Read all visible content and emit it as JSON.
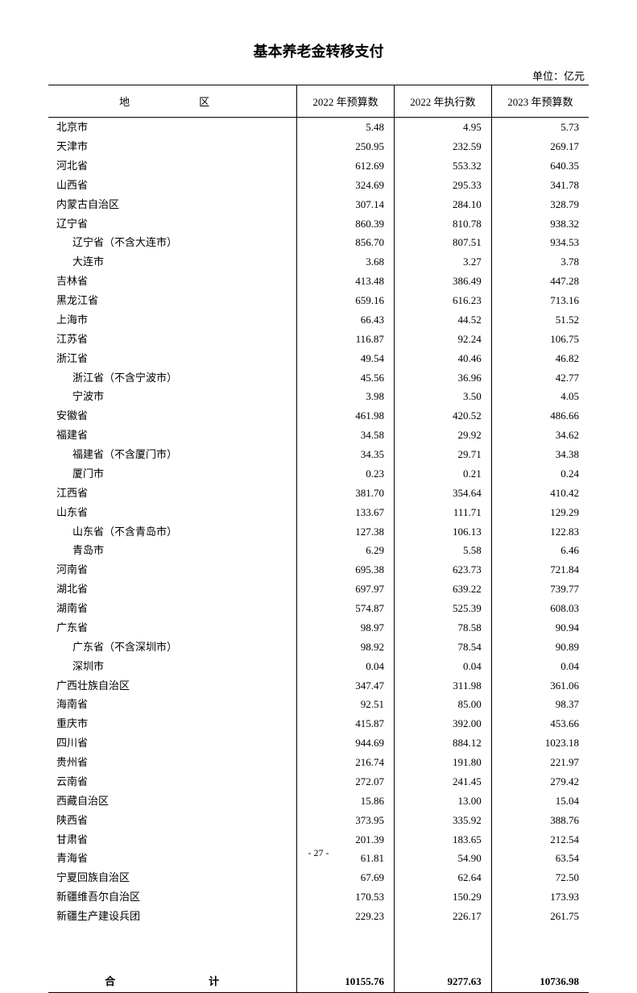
{
  "title": "基本养老金转移支付",
  "unit": "单位：亿元",
  "headers": {
    "region": "地　　区",
    "col1": "2022 年预算数",
    "col2": "2022 年执行数",
    "col3": "2023 年预算数"
  },
  "rows": [
    {
      "region": "北京市",
      "v1": "5.48",
      "v2": "4.95",
      "v3": "5.73",
      "indent": false
    },
    {
      "region": "天津市",
      "v1": "250.95",
      "v2": "232.59",
      "v3": "269.17",
      "indent": false
    },
    {
      "region": "河北省",
      "v1": "612.69",
      "v2": "553.32",
      "v3": "640.35",
      "indent": false
    },
    {
      "region": "山西省",
      "v1": "324.69",
      "v2": "295.33",
      "v3": "341.78",
      "indent": false
    },
    {
      "region": "内蒙古自治区",
      "v1": "307.14",
      "v2": "284.10",
      "v3": "328.79",
      "indent": false
    },
    {
      "region": "辽宁省",
      "v1": "860.39",
      "v2": "810.78",
      "v3": "938.32",
      "indent": false
    },
    {
      "region": "辽宁省（不含大连市）",
      "v1": "856.70",
      "v2": "807.51",
      "v3": "934.53",
      "indent": true
    },
    {
      "region": "大连市",
      "v1": "3.68",
      "v2": "3.27",
      "v3": "3.78",
      "indent": true
    },
    {
      "region": "吉林省",
      "v1": "413.48",
      "v2": "386.49",
      "v3": "447.28",
      "indent": false
    },
    {
      "region": "黑龙江省",
      "v1": "659.16",
      "v2": "616.23",
      "v3": "713.16",
      "indent": false
    },
    {
      "region": "上海市",
      "v1": "66.43",
      "v2": "44.52",
      "v3": "51.52",
      "indent": false
    },
    {
      "region": "江苏省",
      "v1": "116.87",
      "v2": "92.24",
      "v3": "106.75",
      "indent": false
    },
    {
      "region": "浙江省",
      "v1": "49.54",
      "v2": "40.46",
      "v3": "46.82",
      "indent": false
    },
    {
      "region": "浙江省（不含宁波市）",
      "v1": "45.56",
      "v2": "36.96",
      "v3": "42.77",
      "indent": true
    },
    {
      "region": "宁波市",
      "v1": "3.98",
      "v2": "3.50",
      "v3": "4.05",
      "indent": true
    },
    {
      "region": "安徽省",
      "v1": "461.98",
      "v2": "420.52",
      "v3": "486.66",
      "indent": false
    },
    {
      "region": "福建省",
      "v1": "34.58",
      "v2": "29.92",
      "v3": "34.62",
      "indent": false
    },
    {
      "region": "福建省（不含厦门市）",
      "v1": "34.35",
      "v2": "29.71",
      "v3": "34.38",
      "indent": true
    },
    {
      "region": "厦门市",
      "v1": "0.23",
      "v2": "0.21",
      "v3": "0.24",
      "indent": true
    },
    {
      "region": "江西省",
      "v1": "381.70",
      "v2": "354.64",
      "v3": "410.42",
      "indent": false
    },
    {
      "region": "山东省",
      "v1": "133.67",
      "v2": "111.71",
      "v3": "129.29",
      "indent": false
    },
    {
      "region": "山东省（不含青岛市）",
      "v1": "127.38",
      "v2": "106.13",
      "v3": "122.83",
      "indent": true
    },
    {
      "region": "青岛市",
      "v1": "6.29",
      "v2": "5.58",
      "v3": "6.46",
      "indent": true
    },
    {
      "region": "河南省",
      "v1": "695.38",
      "v2": "623.73",
      "v3": "721.84",
      "indent": false
    },
    {
      "region": "湖北省",
      "v1": "697.97",
      "v2": "639.22",
      "v3": "739.77",
      "indent": false
    },
    {
      "region": "湖南省",
      "v1": "574.87",
      "v2": "525.39",
      "v3": "608.03",
      "indent": false
    },
    {
      "region": "广东省",
      "v1": "98.97",
      "v2": "78.58",
      "v3": "90.94",
      "indent": false
    },
    {
      "region": "广东省（不含深圳市）",
      "v1": "98.92",
      "v2": "78.54",
      "v3": "90.89",
      "indent": true
    },
    {
      "region": "深圳市",
      "v1": "0.04",
      "v2": "0.04",
      "v3": "0.04",
      "indent": true
    },
    {
      "region": "广西壮族自治区",
      "v1": "347.47",
      "v2": "311.98",
      "v3": "361.06",
      "indent": false
    },
    {
      "region": "海南省",
      "v1": "92.51",
      "v2": "85.00",
      "v3": "98.37",
      "indent": false
    },
    {
      "region": "重庆市",
      "v1": "415.87",
      "v2": "392.00",
      "v3": "453.66",
      "indent": false
    },
    {
      "region": "四川省",
      "v1": "944.69",
      "v2": "884.12",
      "v3": "1023.18",
      "indent": false
    },
    {
      "region": "贵州省",
      "v1": "216.74",
      "v2": "191.80",
      "v3": "221.97",
      "indent": false
    },
    {
      "region": "云南省",
      "v1": "272.07",
      "v2": "241.45",
      "v3": "279.42",
      "indent": false
    },
    {
      "region": "西藏自治区",
      "v1": "15.86",
      "v2": "13.00",
      "v3": "15.04",
      "indent": false
    },
    {
      "region": "陕西省",
      "v1": "373.95",
      "v2": "335.92",
      "v3": "388.76",
      "indent": false
    },
    {
      "region": "甘肃省",
      "v1": "201.39",
      "v2": "183.65",
      "v3": "212.54",
      "indent": false
    },
    {
      "region": "青海省",
      "v1": "61.81",
      "v2": "54.90",
      "v3": "63.54",
      "indent": false
    },
    {
      "region": "宁夏回族自治区",
      "v1": "67.69",
      "v2": "62.64",
      "v3": "72.50",
      "indent": false
    },
    {
      "region": "新疆维吾尔自治区",
      "v1": "170.53",
      "v2": "150.29",
      "v3": "173.93",
      "indent": false
    },
    {
      "region": "新疆生产建设兵团",
      "v1": "229.23",
      "v2": "226.17",
      "v3": "261.75",
      "indent": false
    }
  ],
  "total": {
    "label": "合　　计",
    "v1": "10155.76",
    "v2": "9277.63",
    "v3": "10736.98"
  },
  "page_number": "- 27 -",
  "columns": {
    "region_width": "46%",
    "col_width": "18%"
  }
}
